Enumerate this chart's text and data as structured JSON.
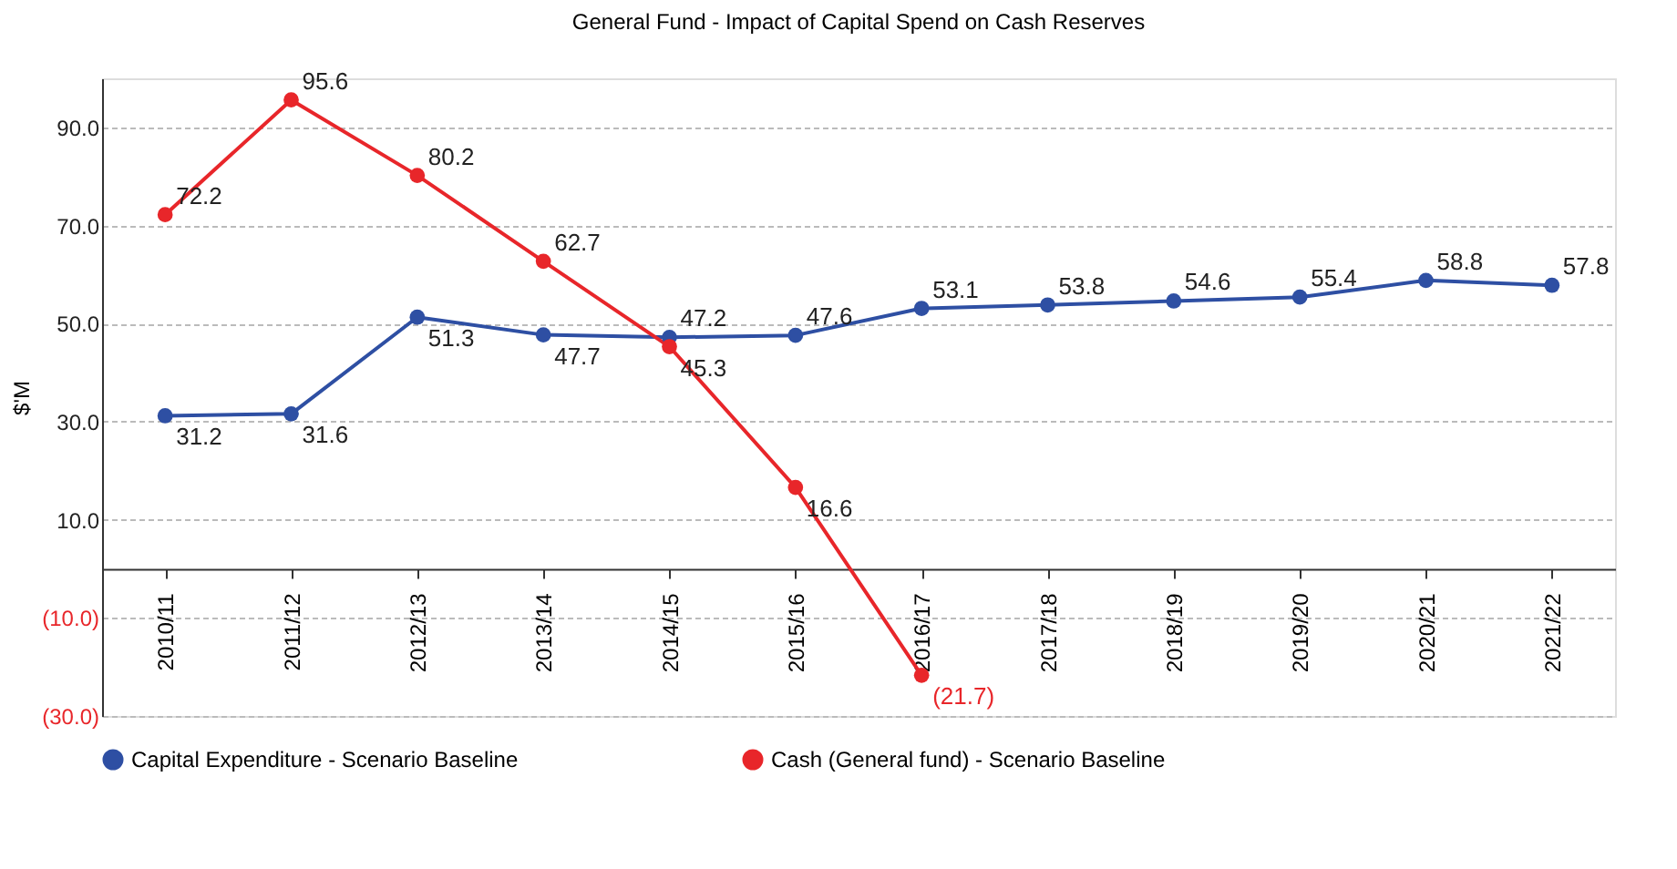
{
  "chart_data": {
    "type": "line",
    "title": "General Fund - Impact of Capital Spend on Cash Reserves",
    "ylabel": "$'M",
    "categories": [
      "2010/11",
      "2011/12",
      "2012/13",
      "2013/14",
      "2014/15",
      "2015/16",
      "2016/17",
      "2017/18",
      "2018/19",
      "2019/20",
      "2020/21",
      "2021/22"
    ],
    "series": [
      {
        "name": "Capital Expenditure - Scenario Baseline",
        "color": "#2e4fa3",
        "values": [
          31.2,
          31.6,
          51.3,
          47.7,
          47.2,
          47.6,
          53.1,
          53.8,
          54.6,
          55.4,
          58.8,
          57.8
        ],
        "value_labels": [
          "31.2",
          "31.6",
          "51.3",
          "47.7",
          "47.2",
          "47.6",
          "53.1",
          "53.8",
          "54.6",
          "55.4",
          "58.8",
          "57.8"
        ]
      },
      {
        "name": "Cash (General fund) - Scenario Baseline",
        "color": "#e8262a",
        "values": [
          72.2,
          95.6,
          80.2,
          62.7,
          45.3,
          16.6,
          -21.7,
          null,
          null,
          null,
          null,
          null
        ],
        "value_labels": [
          "72.2",
          "95.6",
          "80.2",
          "62.7",
          "45.3",
          "16.6",
          "(21.7)",
          null,
          null,
          null,
          null,
          null
        ]
      }
    ],
    "ylim": [
      -30,
      100
    ],
    "yticks": [
      {
        "value": -30,
        "label": "(30.0)"
      },
      {
        "value": -10,
        "label": "(10.0)"
      },
      {
        "value": 10,
        "label": "10.0"
      },
      {
        "value": 30,
        "label": "30.0"
      },
      {
        "value": 50,
        "label": "50.0"
      },
      {
        "value": 70,
        "label": "70.0"
      },
      {
        "value": 90,
        "label": "90.0"
      }
    ],
    "grid": "y",
    "legend": "bottom",
    "marker": "circle",
    "line_style": "solid"
  }
}
